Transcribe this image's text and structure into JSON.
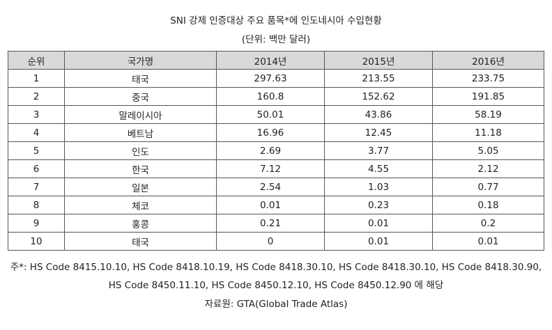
{
  "title": "SNI 강제 인증대상 주요 품목*에 인도네시아 수입현황",
  "unit": "(단위: 백만 달러)",
  "table": {
    "headers": [
      "순위",
      "국가명",
      "2014년",
      "2015년",
      "2016년"
    ],
    "rows": [
      [
        "1",
        "태국",
        "297.63",
        "213.55",
        "233.75"
      ],
      [
        "2",
        "중국",
        "160.8",
        "152.62",
        "191.85"
      ],
      [
        "3",
        "말레이시아",
        "50.01",
        "43.86",
        "58.19"
      ],
      [
        "4",
        "베트남",
        "16.96",
        "12.45",
        "11.18"
      ],
      [
        "5",
        "인도",
        "2.69",
        "3.77",
        "5.05"
      ],
      [
        "6",
        "한국",
        "7.12",
        "4.55",
        "2.12"
      ],
      [
        "7",
        "일본",
        "2.54",
        "1.03",
        "0.77"
      ],
      [
        "8",
        "체코",
        "0.01",
        "0.23",
        "0.18"
      ],
      [
        "9",
        "홍콩",
        "0.21",
        "0.01",
        "0.2"
      ],
      [
        "10",
        "태국",
        "0",
        "0.01",
        "0.01"
      ]
    ]
  },
  "notes": {
    "line1": "주*: HS Code 8415.10.10, HS Code 8418.10.19, HS Code 8418.30.10, HS Code 8418.30.10, HS Code 8418.30.90,",
    "line2": "HS Code 8450.11.10, HS Code 8450.12.10, HS Code 8450.12.90 에 해당",
    "source": "자료원: GTA(Global Trade Atlas)"
  },
  "colors": {
    "header_background": "#d9d9d9",
    "border": "#555555",
    "text": "#222222"
  }
}
